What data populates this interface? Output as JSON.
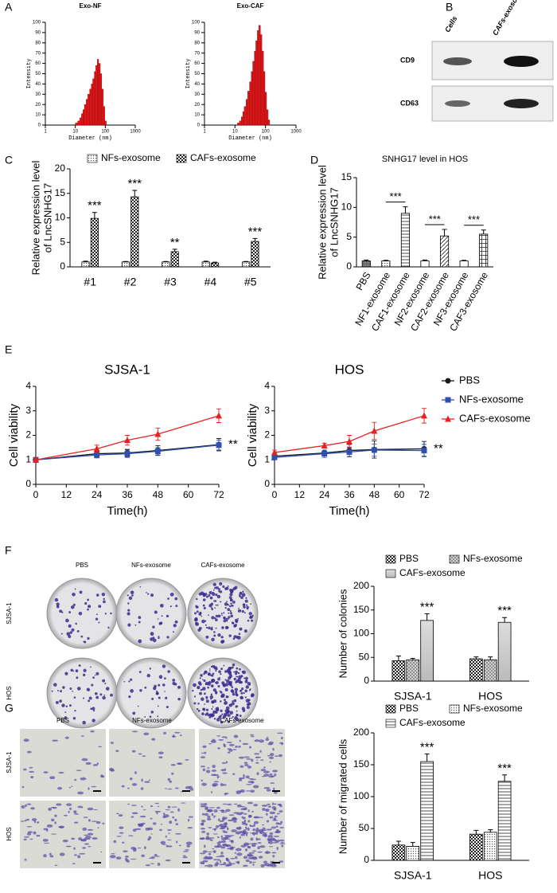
{
  "panel_labels": [
    "A",
    "B",
    "C",
    "D",
    "E",
    "F",
    "G"
  ],
  "blot": {
    "columns": [
      "Cells",
      "CAFs-exosome"
    ],
    "rows": [
      "CD9",
      "CD63"
    ]
  },
  "images": [
    {
      "columns": [
        "PBS",
        "NFs-exosome",
        "CAFs-exosome"
      ],
      "rows": [
        "SJSA-1",
        "HOS"
      ]
    },
    {
      "columns": [
        "PBS",
        "NFs-exosome",
        "CAFs-exosome"
      ],
      "rows": [
        "SJSA-1",
        "HOS"
      ]
    }
  ],
  "chart_data": [
    {
      "type": "histogram",
      "title": "Exo-NF",
      "xlabel": "Diameter (nm)",
      "ylabel": "Intensity",
      "color": "#e31a1c",
      "xlog": true,
      "bins": [
        10,
        12,
        14,
        16,
        18,
        20,
        23,
        26,
        30,
        34,
        38,
        43,
        48,
        54,
        60,
        68,
        76,
        86,
        96,
        108
      ],
      "values": [
        2,
        4,
        7,
        11,
        15,
        20,
        25,
        30,
        35,
        40,
        45,
        52,
        58,
        64,
        60,
        50,
        35,
        18,
        4
      ],
      "xlim": [
        1,
        1000
      ],
      "xticks": [
        1,
        10,
        100,
        1000
      ],
      "ylim": [
        0,
        100
      ],
      "yticks": [
        0,
        10,
        20,
        30,
        40,
        50,
        60,
        70,
        80,
        90,
        100
      ]
    },
    {
      "type": "histogram",
      "title": "Exo-CAF",
      "xlabel": "Diameter (nm)",
      "ylabel": "Intensity",
      "color": "#e31a1c",
      "xlog": true,
      "bins": [
        12,
        14,
        16,
        18,
        20,
        23,
        26,
        30,
        34,
        38,
        43,
        48,
        54,
        60,
        68,
        76,
        86,
        96,
        108,
        122,
        137
      ],
      "values": [
        2,
        4,
        8,
        13,
        18,
        25,
        33,
        42,
        52,
        62,
        72,
        82,
        92,
        97,
        88,
        72,
        52,
        32,
        15,
        5
      ],
      "xlim": [
        1,
        1000
      ],
      "xticks": [
        1,
        10,
        100,
        1000
      ],
      "ylim": [
        0,
        100
      ],
      "yticks": [
        0,
        10,
        20,
        30,
        40,
        50,
        60,
        70,
        80,
        90,
        100
      ]
    },
    {
      "type": "bar",
      "ylabel": [
        "Relative expression level",
        "of LncSNHG17"
      ],
      "legend": "top",
      "categories": [
        "#1",
        "#2",
        "#3",
        "#4",
        "#5"
      ],
      "series": [
        {
          "name": "NFs-exosome",
          "pattern": "dots",
          "values": [
            1,
            1,
            1,
            1,
            1
          ],
          "errors": [
            0.15,
            0.1,
            0.1,
            0.15,
            0.1
          ]
        },
        {
          "name": "CAFs-exosome",
          "pattern": "checker",
          "values": [
            9.9,
            14.3,
            3.1,
            0.8,
            5.2
          ],
          "errors": [
            1.2,
            1.3,
            0.5,
            0.15,
            0.6
          ]
        }
      ],
      "annotations": [
        "***",
        "***",
        "**",
        null,
        "***"
      ],
      "ylim": [
        0,
        20
      ],
      "yticks": [
        0,
        5,
        10,
        15,
        20
      ]
    },
    {
      "type": "bar",
      "title": "SNHG17 level in HOS",
      "ylabel": [
        "Relative expression level",
        "of LncSNHG17"
      ],
      "categories": [
        "PBS",
        "NF1-exosome",
        "CAF1-exosome",
        "NF2-exosome",
        "CAF2-exosome",
        "NF3-exosome",
        "CAF3-exosome"
      ],
      "values": [
        1,
        1,
        9,
        1,
        5.2,
        1,
        5.5
      ],
      "errors": [
        0.15,
        0.1,
        1.1,
        0.15,
        1.1,
        0.1,
        0.7
      ],
      "patterns": [
        "dense",
        "dots",
        "hlines",
        "plain",
        "diag",
        "plain",
        "grid"
      ],
      "annotations": [
        null,
        null,
        "***",
        null,
        "***",
        null,
        "***"
      ],
      "ylim": [
        0,
        15
      ],
      "yticks": [
        0,
        5,
        10,
        15
      ]
    },
    {
      "type": "line",
      "title": "SJSA-1",
      "xlabel": "Time(h)",
      "ylabel": "Cell viability",
      "annotation": "**",
      "x": [
        0,
        24,
        36,
        48,
        72
      ],
      "series": [
        {
          "color": "#1a1a1a",
          "marker": "circle",
          "values": [
            1,
            1.25,
            1.28,
            1.38,
            1.62
          ],
          "errors": [
            0.1,
            0.1,
            0.15,
            0.2,
            0.25
          ]
        },
        {
          "color": "#3050b0",
          "marker": "square",
          "values": [
            1,
            1.2,
            1.25,
            1.35,
            1.6
          ],
          "errors": [
            0.08,
            0.12,
            0.15,
            0.15,
            0.2
          ]
        },
        {
          "color": "#e82020",
          "marker": "triangle",
          "values": [
            1,
            1.45,
            1.8,
            2.05,
            2.8
          ],
          "errors": [
            0.08,
            0.15,
            0.2,
            0.25,
            0.28
          ]
        }
      ],
      "xlim": [
        0,
        72
      ],
      "xticks": [
        0,
        12,
        24,
        36,
        48,
        60,
        72
      ],
      "ylim": [
        0,
        4
      ],
      "yticks": [
        0,
        1,
        2,
        3,
        4
      ]
    },
    {
      "type": "line",
      "title": "HOS",
      "xlabel": "Time(h)",
      "ylabel": "Cell viability",
      "annotation": "**",
      "legend": "right",
      "x": [
        0,
        24,
        36,
        48,
        72
      ],
      "series": [
        {
          "name": "PBS",
          "color": "#1a1a1a",
          "marker": "circle",
          "values": [
            1.15,
            1.28,
            1.38,
            1.42,
            1.45
          ],
          "errors": [
            0.08,
            0.12,
            0.25,
            0.35,
            0.3
          ]
        },
        {
          "name": "NFs-exosome",
          "color": "#3050b0",
          "marker": "square",
          "values": [
            1.1,
            1.25,
            1.32,
            1.4,
            1.38
          ],
          "errors": [
            0.08,
            0.15,
            0.2,
            0.25,
            0.25
          ]
        },
        {
          "name": "CAFs-exosome",
          "color": "#e82020",
          "marker": "triangle",
          "values": [
            1.3,
            1.58,
            1.75,
            2.18,
            2.8
          ],
          "errors": [
            0.1,
            0.1,
            0.25,
            0.35,
            0.3
          ]
        }
      ],
      "xlim": [
        0,
        72
      ],
      "xticks": [
        0,
        12,
        24,
        36,
        48,
        60,
        72
      ],
      "ylim": [
        0,
        4
      ],
      "yticks": [
        0,
        1,
        2,
        3,
        4
      ]
    },
    {
      "type": "bar",
      "ylabel": "Number of colonies",
      "legend": "top",
      "categories": [
        "SJSA-1",
        "HOS"
      ],
      "series": [
        {
          "name": "PBS",
          "pattern": "checker",
          "values": [
            43,
            47
          ],
          "errors": [
            10,
            4
          ]
        },
        {
          "name": "NFs-exosome",
          "pattern": "crosshatch",
          "values": [
            45,
            45
          ],
          "errors": [
            3,
            6
          ]
        },
        {
          "name": "CAFs-exosome",
          "pattern": "grey",
          "values": [
            128,
            124
          ],
          "errors": [
            14,
            10
          ]
        }
      ],
      "annotations": [
        "***",
        "***"
      ],
      "ylim": [
        0,
        200
      ],
      "yticks": [
        0,
        50,
        100,
        150,
        200
      ]
    },
    {
      "type": "bar",
      "ylabel": "Number of migrated cells",
      "legend": "top",
      "categories": [
        "SJSA-1",
        "HOS"
      ],
      "series": [
        {
          "name": "PBS",
          "pattern": "checker",
          "values": [
            24,
            41
          ],
          "errors": [
            6,
            6
          ]
        },
        {
          "name": "NFs-exosome",
          "pattern": "dots",
          "values": [
            22,
            44
          ],
          "errors": [
            6,
            4
          ]
        },
        {
          "name": "CAFs-exosome",
          "pattern": "hlines",
          "values": [
            155,
            124
          ],
          "errors": [
            12,
            10
          ]
        }
      ],
      "annotations": [
        "***",
        "***"
      ],
      "ylim": [
        0,
        200
      ],
      "yticks": [
        0,
        50,
        100,
        150,
        200
      ]
    }
  ]
}
